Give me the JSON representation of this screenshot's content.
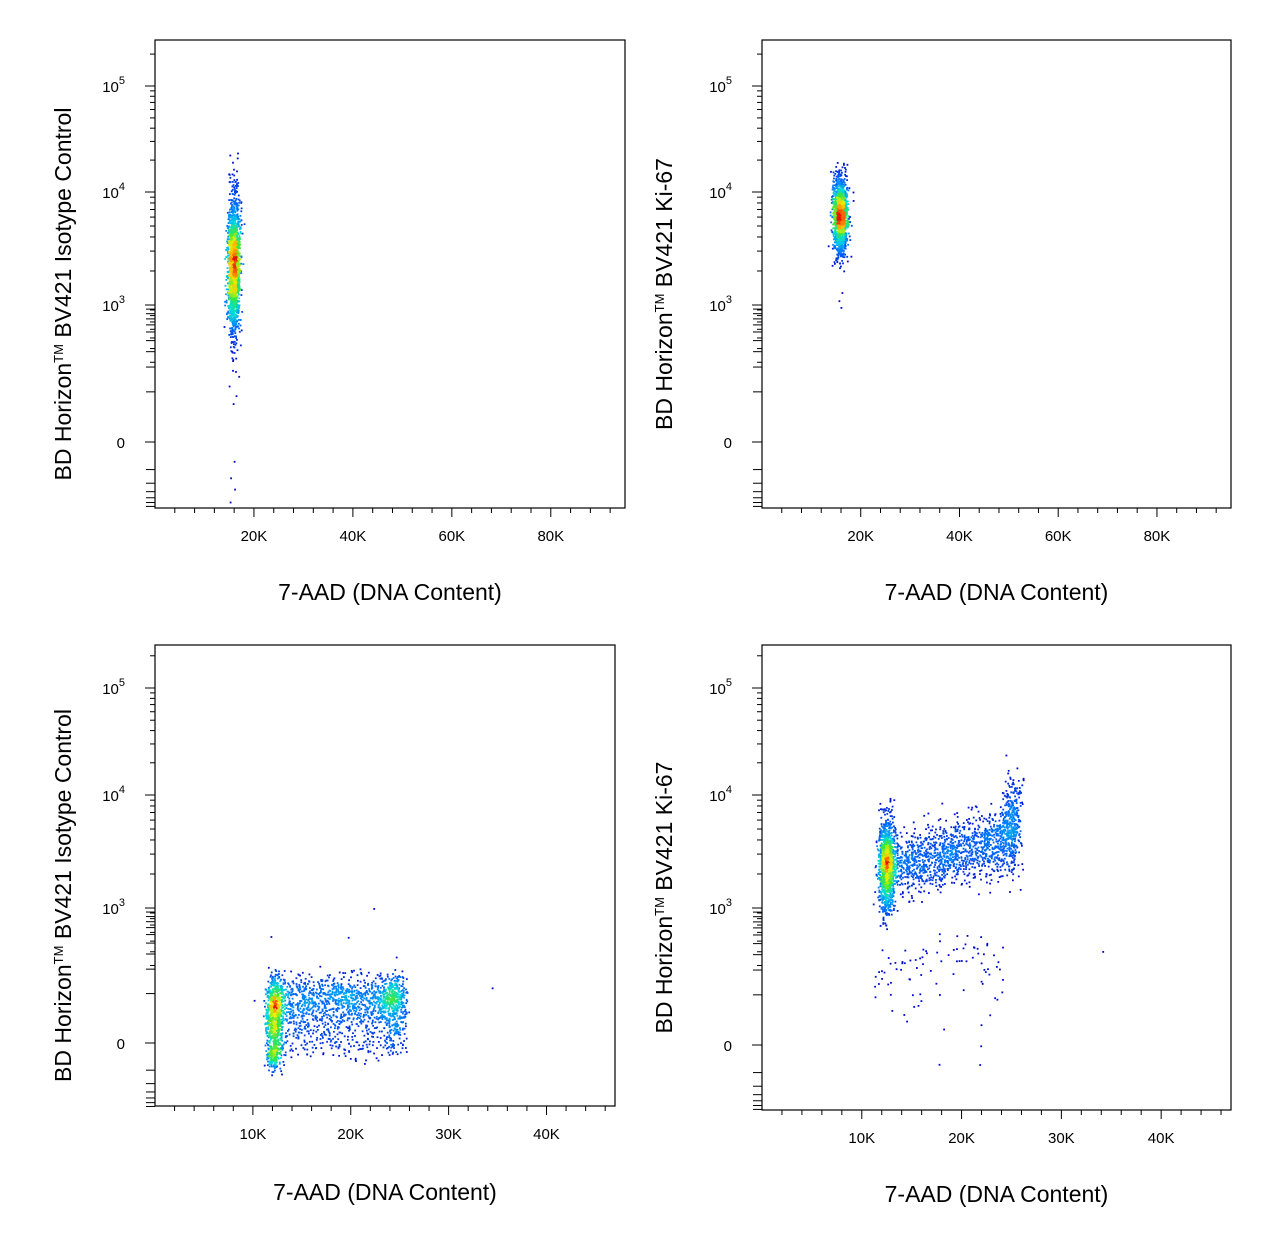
{
  "chart_data": [
    {
      "type": "scatter",
      "id": "top-left",
      "xlabel": "7-AAD (DNA Content)",
      "ylabel": {
        "prefix": "BD Horizon",
        "mark": "TM",
        "suffix": " BV421 Isotype Control"
      },
      "x_ticks": [
        20000,
        40000,
        60000,
        80000
      ],
      "x_tick_labels": [
        "20K",
        "40K",
        "60K",
        "80K"
      ],
      "xlim": [
        0,
        95000
      ],
      "y_scale": "biexponential",
      "y_ticks": [
        {
          "value": 100000,
          "base": "10",
          "exp": "5"
        },
        {
          "value": 10000,
          "base": "10",
          "exp": "4"
        },
        {
          "value": 1000,
          "base": "10",
          "exp": "3"
        },
        {
          "value": 0,
          "base": "0",
          "exp": ""
        }
      ],
      "populations": [
        {
          "x": 15800,
          "y_log_center": 3.35,
          "x_spread": 600,
          "y_log_spread": 0.3,
          "count": 1800
        }
      ],
      "sparse_points": [
        {
          "x": 15500,
          "y": 300
        },
        {
          "x": 16200,
          "y": 180
        },
        {
          "x": 14900,
          "y": 120
        },
        {
          "x": 15700,
          "y": 70
        },
        {
          "x": 15200,
          "y": -150
        },
        {
          "x": 16000,
          "y": -260
        },
        {
          "x": 15100,
          "y": -480
        },
        {
          "x": 15600,
          "y": 240
        },
        {
          "x": 16300,
          "y": 90
        },
        {
          "x": 15900,
          "y": -60
        },
        {
          "x": 14700,
          "y": -900
        }
      ]
    },
    {
      "type": "scatter",
      "id": "top-right",
      "xlabel": "7-AAD (DNA Content)",
      "ylabel": {
        "prefix": "BD Horizon",
        "mark": "TM",
        "suffix": " BV421 Ki-67"
      },
      "x_ticks": [
        20000,
        40000,
        60000,
        80000
      ],
      "x_tick_labels": [
        "20K",
        "40K",
        "60K",
        "80K"
      ],
      "xlim": [
        0,
        95000
      ],
      "y_scale": "biexponential",
      "y_ticks": [
        {
          "value": 100000,
          "base": "10",
          "exp": "5"
        },
        {
          "value": 10000,
          "base": "10",
          "exp": "4"
        },
        {
          "value": 1000,
          "base": "10",
          "exp": "3"
        },
        {
          "value": 0,
          "base": "0",
          "exp": ""
        }
      ],
      "populations": [
        {
          "x": 15700,
          "y_log_center": 3.8,
          "x_spread": 700,
          "y_log_spread": 0.16,
          "count": 1500
        }
      ],
      "sparse_points": [
        {
          "x": 15500,
          "y": 1100
        },
        {
          "x": 15900,
          "y": 950
        },
        {
          "x": 16100,
          "y": 1300
        },
        {
          "x": 15300,
          "y": -900
        }
      ]
    },
    {
      "type": "scatter",
      "id": "bottom-left",
      "xlabel": "7-AAD (DNA Content)",
      "ylabel": {
        "prefix": "BD Horizon",
        "mark": "TM",
        "suffix": " BV421 Isotype Control"
      },
      "x_ticks": [
        10000,
        20000,
        30000,
        40000
      ],
      "x_tick_labels": [
        "10K",
        "20K",
        "30K",
        "40K"
      ],
      "xlim": [
        0,
        47000
      ],
      "y_scale": "biexponential",
      "y_ticks": [
        {
          "value": 100000,
          "base": "10",
          "exp": "5"
        },
        {
          "value": 10000,
          "base": "10",
          "exp": "4"
        },
        {
          "value": 1000,
          "base": "10",
          "exp": "3"
        },
        {
          "value": 0,
          "base": "0",
          "exp": ""
        }
      ],
      "populations": [
        {
          "x": 12100,
          "y_lin_center": 40,
          "x_spread": 420,
          "y_lin_spread": 55,
          "count": 900
        },
        {
          "x_range": [
            12500,
            25500
          ],
          "y_lin_center": 70,
          "y_lin_spread": 45,
          "count": 1400
        },
        {
          "x": 24200,
          "y_lin_center": 80,
          "x_spread": 600,
          "y_lin_spread": 45,
          "count": 250
        }
      ],
      "sparse_points": [
        {
          "x": 11800,
          "y": 480
        },
        {
          "x": 19700,
          "y": 470
        },
        {
          "x": 22300,
          "y": 1000
        },
        {
          "x": 24600,
          "y": 280
        },
        {
          "x": 34400,
          "y": 120
        }
      ]
    },
    {
      "type": "scatter",
      "id": "bottom-right",
      "xlabel": "7-AAD (DNA Content)",
      "ylabel": {
        "prefix": "BD Horizon",
        "mark": "TM",
        "suffix": " BV421 Ki-67"
      },
      "x_ticks": [
        10000,
        20000,
        30000,
        40000
      ],
      "x_tick_labels": [
        "10K",
        "20K",
        "30K",
        "40K"
      ],
      "xlim": [
        0,
        47000
      ],
      "y_scale": "biexponential",
      "y_ticks": [
        {
          "value": 100000,
          "base": "10",
          "exp": "5"
        },
        {
          "value": 10000,
          "base": "10",
          "exp": "4"
        },
        {
          "value": 1000,
          "base": "10",
          "exp": "3"
        },
        {
          "value": 0,
          "base": "0",
          "exp": ""
        }
      ],
      "populations": [
        {
          "x": 12400,
          "y_log_center": 3.38,
          "x_spread": 380,
          "y_log_spread": 0.2,
          "count": 1200
        },
        {
          "x_range": [
            12800,
            24500
          ],
          "y_log_start": 3.38,
          "y_log_end": 3.6,
          "y_log_spread": 0.14,
          "count": 1300
        },
        {
          "x": 25000,
          "y_log_center": 3.75,
          "x_spread": 450,
          "y_log_spread": 0.2,
          "count": 350
        },
        {
          "x_range": [
            11000,
            24500
          ],
          "y_lin_center": 220,
          "y_lin_spread": 110,
          "count": 90
        }
      ],
      "sparse_points": [
        {
          "x": 34100,
          "y": 330
        },
        {
          "x": 20500,
          "y": 500
        },
        {
          "x": 13500,
          "y": 950
        }
      ]
    }
  ]
}
